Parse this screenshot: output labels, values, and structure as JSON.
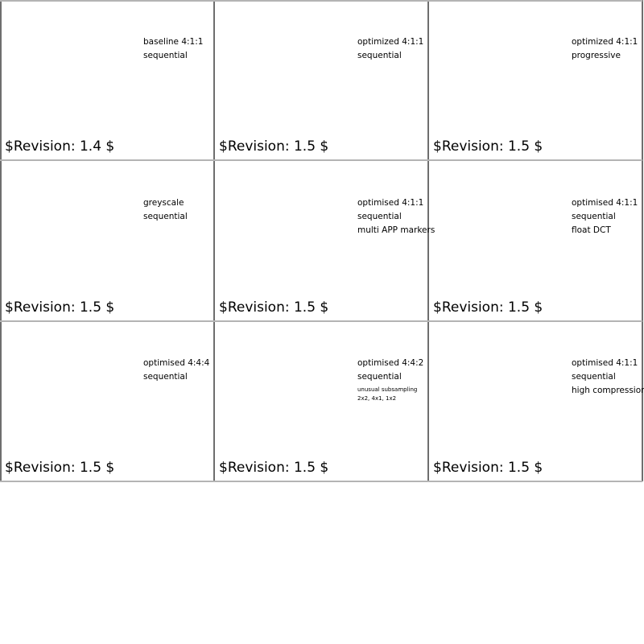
{
  "cells": [
    {
      "lines": [
        "baseline 4:1:1",
        "sequential"
      ],
      "revision": "$Revision: 1.4 $"
    },
    {
      "lines": [
        "optimized 4:1:1",
        "sequential"
      ],
      "revision": "$Revision: 1.5 $"
    },
    {
      "lines": [
        "optimized 4:1:1",
        "progressive"
      ],
      "revision": "$Revision: 1.5 $"
    },
    {
      "lines": [
        "greyscale",
        "sequential"
      ],
      "revision": "$Revision: 1.5 $"
    },
    {
      "lines": [
        "optimised 4:1:1",
        "sequential",
        "multi APP markers"
      ],
      "revision": "$Revision: 1.5 $"
    },
    {
      "lines": [
        "optimised 4:1:1",
        "sequential",
        "float DCT"
      ],
      "revision": "$Revision: 1.5 $"
    },
    {
      "lines": [
        "optimised 4:4:4",
        "sequential"
      ],
      "revision": "$Revision: 1.5 $"
    },
    {
      "lines": [
        "optimised 4:4:2",
        "sequential"
      ],
      "small_lines": [
        "unusual subsampling",
        "2x2, 4x1, 1x2"
      ],
      "revision": "$Revision: 1.5 $"
    },
    {
      "lines": [
        "optimised 4:1:1",
        "sequential",
        "high compression"
      ],
      "revision": "$Revision: 1.5 $"
    }
  ]
}
